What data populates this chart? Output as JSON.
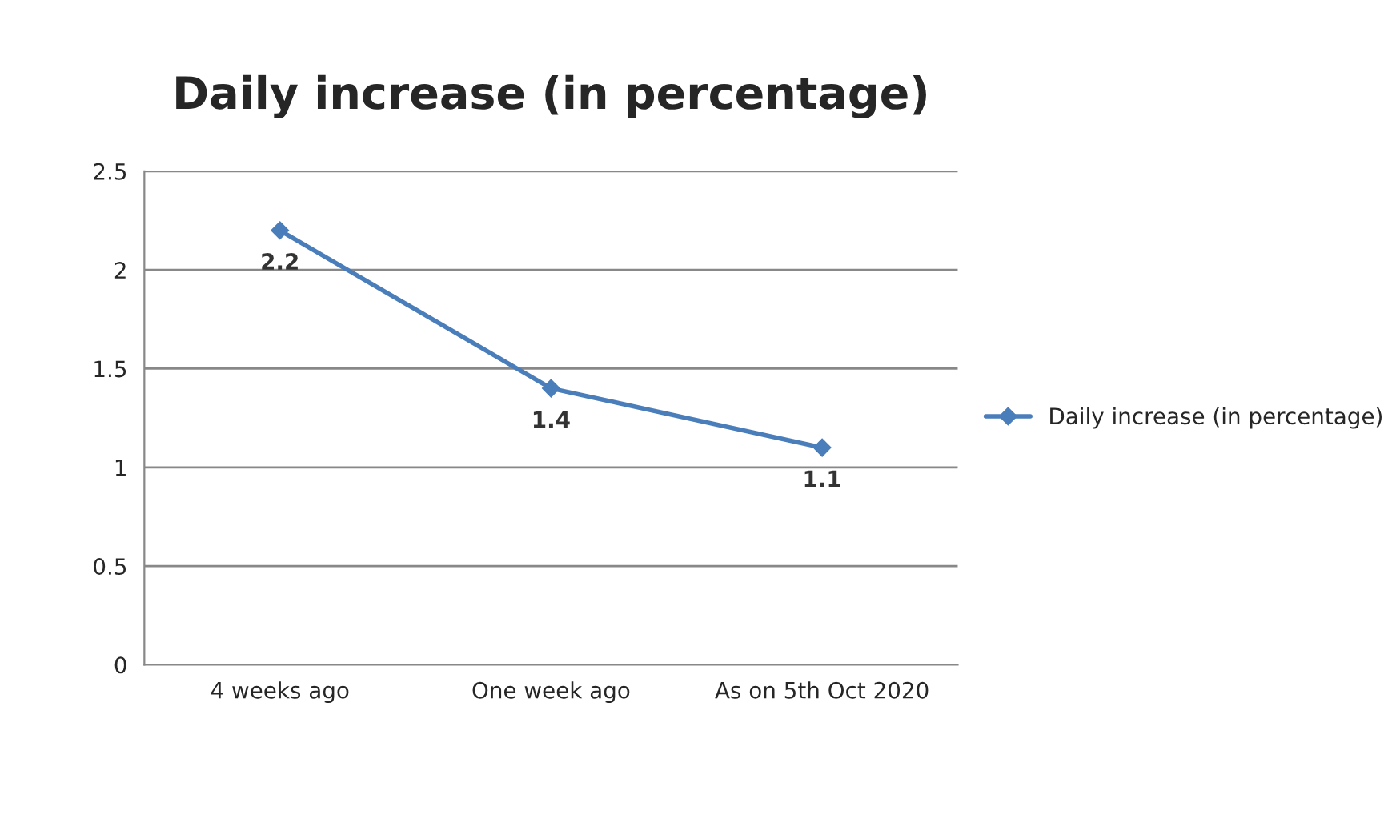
{
  "chart_data": {
    "type": "line",
    "title": "Daily increase (in percentage)",
    "categories": [
      "4 weeks ago",
      "One week ago",
      "As on 5th Oct 2020"
    ],
    "series": [
      {
        "name": "Daily increase (in percentage)",
        "color": "#4a7ebb",
        "values": [
          2.2,
          1.4,
          1.1
        ]
      }
    ],
    "ylim": [
      0,
      2.5
    ],
    "yticks": [
      0,
      0.5,
      1,
      1.5,
      2,
      2.5
    ],
    "grid": "y",
    "legend": "right",
    "marker": "diamond",
    "line_style": "solid",
    "data_labels": true
  }
}
